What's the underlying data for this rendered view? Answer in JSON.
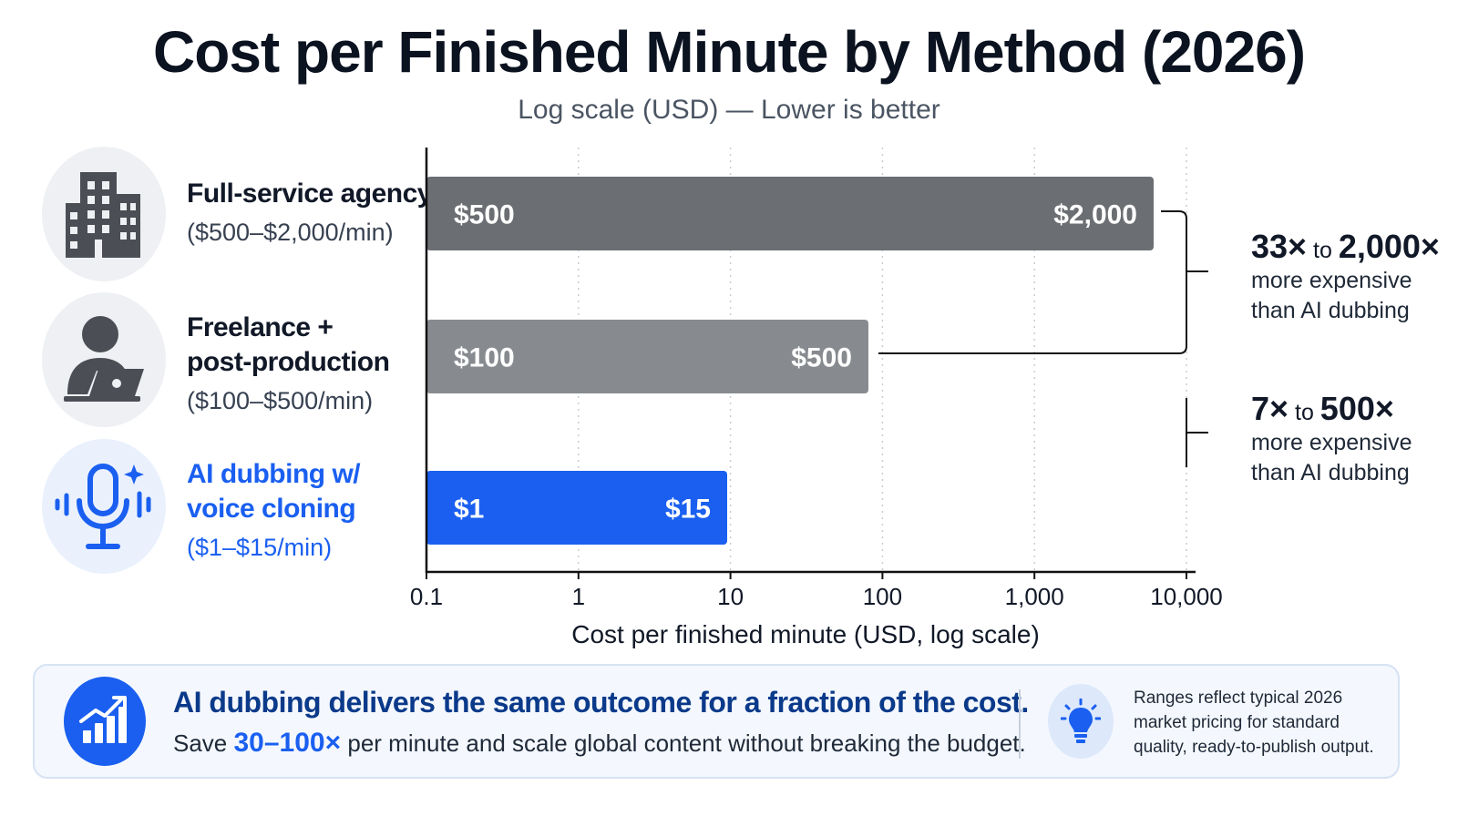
{
  "colors": {
    "agency": "#6b6e72",
    "freelance": "#878b90",
    "ai": "#1a5ff0",
    "axis": "#111111",
    "grid": "#c9ccd1"
  },
  "rows": [
    {
      "icon": "office-building-icon",
      "name": "Full-service agency",
      "range": "($500–$2,000/min)"
    },
    {
      "icon": "person-laptop-icon",
      "name_line1": "Freelance +",
      "name_line2": "post-production",
      "range": "($100–$500/min)"
    },
    {
      "icon": "microphone-waves-icon",
      "name_line1": "AI dubbing w/",
      "name_line2": "voice cloning",
      "range": "($1–$15/min)"
    }
  ],
  "brackets": [
    {
      "big1": "33×",
      "mid": " to ",
      "big2": "2,000×",
      "line1": "more expensive",
      "line2": "than AI dubbing"
    },
    {
      "big1": "7×",
      "mid": " to ",
      "big2": "500×",
      "line1": "more expensive",
      "line2": "than AI dubbing"
    }
  ],
  "footer": {
    "icon": "growth-chart-icon",
    "headline": "AI dubbing delivers the same outcome for a fraction of the cost.",
    "sub_pre": "Save ",
    "sub_highlight": "30–100×",
    "sub_post": " per minute and scale global content without breaking the budget.",
    "note_icon": "lightbulb-icon",
    "note": "Ranges reflect typical 2026 market pricing for standard quality, ready-to-publish output."
  },
  "chart_data": {
    "type": "bar",
    "orientation": "horizontal-range",
    "title": "Cost per Finished Minute by Method (2026)",
    "subtitle": "Log scale (USD) — Lower is better",
    "xlabel": "Cost per finished minute (USD, log scale)",
    "ylabel": "",
    "x_scale": "log",
    "xlim": [
      0.1,
      10000
    ],
    "x_ticks": [
      0.1,
      1,
      10,
      100,
      1000,
      10000
    ],
    "x_tick_labels": [
      "0.1",
      "1",
      "10",
      "100",
      "1,000",
      "10,000"
    ],
    "grid": "vertical-dotted",
    "series": [
      {
        "category": "Full-service agency",
        "min": 500,
        "max": 2000,
        "min_label": "$500",
        "max_label": "$2,000",
        "color": "#6b6e72"
      },
      {
        "category": "Freelance + post-production",
        "min": 100,
        "max": 500,
        "min_label": "$100",
        "max_label": "$500",
        "color": "#878b90"
      },
      {
        "category": "AI dubbing w/ voice cloning",
        "min": 1,
        "max": 15,
        "min_label": "$1",
        "max_label": "$15",
        "color": "#1a5ff0"
      }
    ]
  }
}
